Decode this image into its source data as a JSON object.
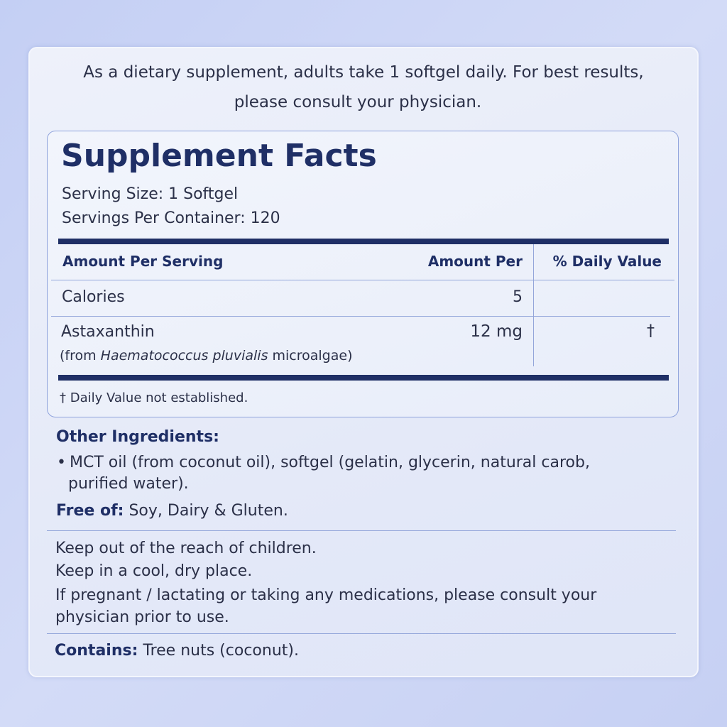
{
  "intro": {
    "line1": "As a dietary supplement, adults take 1 softgel daily. For best results,",
    "line2": "please consult your physician."
  },
  "facts": {
    "title": "Supplement Facts",
    "serving_size": "Serving Size: 1 Softgel",
    "servings_per_container": "Servings Per Container: 120",
    "columns": [
      "Amount Per Serving",
      "Amount Per",
      "% Daily Value"
    ],
    "rows": [
      {
        "name": "Calories",
        "amount": "5",
        "dv": ""
      },
      {
        "name": "Astaxanthin",
        "source_prefix": "(from ",
        "source_italic": "Haematococcus pluvialis",
        "source_suffix": " microalgae)",
        "amount": "12 mg",
        "dv": "†"
      }
    ],
    "footnote": "† Daily Value not established."
  },
  "other_ingredients": {
    "heading": "Other Ingredients:",
    "bullet": "•",
    "line1": "MCT oil (from coconut oil), softgel (gelatin, glycerin, natural carob,",
    "line2": "purified water)."
  },
  "free_of": {
    "label": "Free of:",
    "value": " Soy, Dairy & Gluten."
  },
  "warnings": [
    "Keep out of the reach of children.",
    "Keep in a cool, dry place.",
    "If pregnant / lactating or taking any medications, please consult your",
    "physician prior to use."
  ],
  "contains": {
    "label": "Contains:",
    "value": " Tree nuts (coconut)."
  },
  "colors": {
    "navy": "#1f2f66",
    "background": "#c9d3f5",
    "rule": "#93a6da"
  }
}
